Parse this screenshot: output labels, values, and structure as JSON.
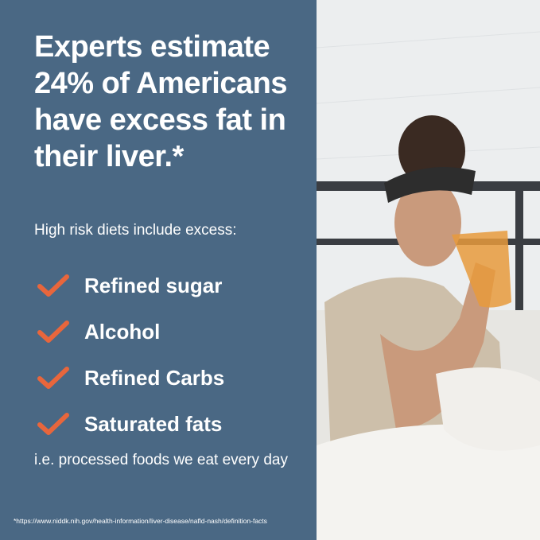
{
  "headline": "Experts estimate 24% of Americans have excess fat in their liver.*",
  "subheading": "High risk diets include excess:",
  "items": [
    "Refined sugar",
    "Alcohol",
    "Refined Carbs",
    "Saturated fats"
  ],
  "icon": "checkmark-icon",
  "note": "i.e. processed foods we eat every day",
  "footnote": "*https://www.niddk.nih.gov/health-information/liver-disease/nafld-nash/definition-facts",
  "colors": {
    "panel": "#4a6884",
    "check": "#e8663c",
    "text": "#ffffff"
  }
}
